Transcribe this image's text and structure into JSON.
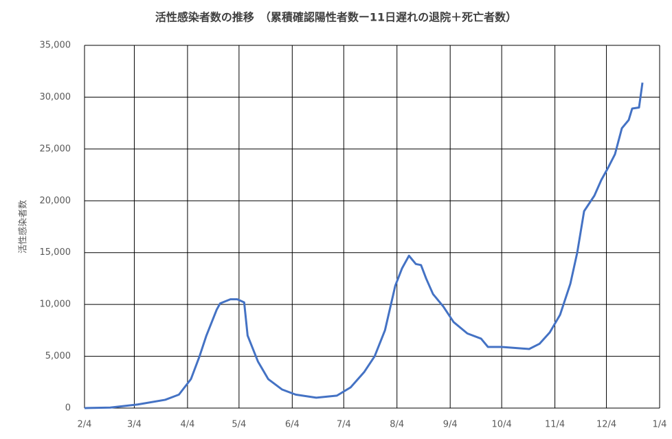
{
  "chart_data": {
    "type": "line",
    "title": "活性感染者数の推移　（累積確認陽性者数ー11日遅れの退院＋死亡者数）",
    "y_label": "活性感染者数",
    "series": [
      {
        "name": "活性感染者数",
        "color": "#4472c4",
        "x": [
          0,
          15,
          31,
          47,
          55,
          62,
          67,
          71,
          77,
          79,
          85,
          89,
          93,
          95,
          101,
          107,
          115,
          123,
          135,
          147,
          155,
          163,
          169,
          175,
          181,
          185,
          189,
          193,
          196,
          199,
          203,
          209,
          215,
          223,
          231,
          235,
          243,
          251,
          259,
          265,
          271,
          277,
          283,
          287,
          291,
          297,
          301,
          305,
          309,
          313,
          317,
          319,
          323,
          325
        ],
        "values": [
          0,
          50,
          350,
          800,
          1300,
          2800,
          5000,
          7000,
          9500,
          10100,
          10500,
          10500,
          10200,
          7000,
          4500,
          2800,
          1800,
          1300,
          1000,
          1200,
          2000,
          3500,
          5000,
          7500,
          11800,
          13500,
          14700,
          13900,
          13800,
          12500,
          11000,
          9800,
          8300,
          7200,
          6700,
          5900,
          5900,
          5800,
          5700,
          6200,
          7300,
          9000,
          12000,
          15000,
          19000,
          20500,
          22000,
          23200,
          24500,
          27000,
          27800,
          28900,
          29000,
          31400
        ]
      }
    ],
    "xlim": [
      0,
      335
    ],
    "xticks": [
      {
        "value": 0,
        "label": "2/4"
      },
      {
        "value": 29,
        "label": "3/4"
      },
      {
        "value": 60,
        "label": "4/4"
      },
      {
        "value": 90,
        "label": "5/4"
      },
      {
        "value": 121,
        "label": "6/4"
      },
      {
        "value": 151,
        "label": "7/4"
      },
      {
        "value": 182,
        "label": "8/4"
      },
      {
        "value": 213,
        "label": "9/4"
      },
      {
        "value": 243,
        "label": "10/4"
      },
      {
        "value": 274,
        "label": "11/4"
      },
      {
        "value": 304,
        "label": "12/4"
      },
      {
        "value": 335,
        "label": "1/4"
      }
    ],
    "ylim": [
      0,
      35000
    ],
    "yticks": [
      0,
      {
        "value": 5000,
        "label": "5,000"
      },
      {
        "value": 10000,
        "label": "10,000"
      },
      {
        "value": 15000,
        "label": "15,000"
      },
      {
        "value": 20000,
        "label": "20,000"
      },
      {
        "value": 25000,
        "label": "25,000"
      },
      {
        "value": 30000,
        "label": "30,000"
      },
      {
        "value": 35000,
        "label": "35,000"
      }
    ],
    "grid": true
  }
}
